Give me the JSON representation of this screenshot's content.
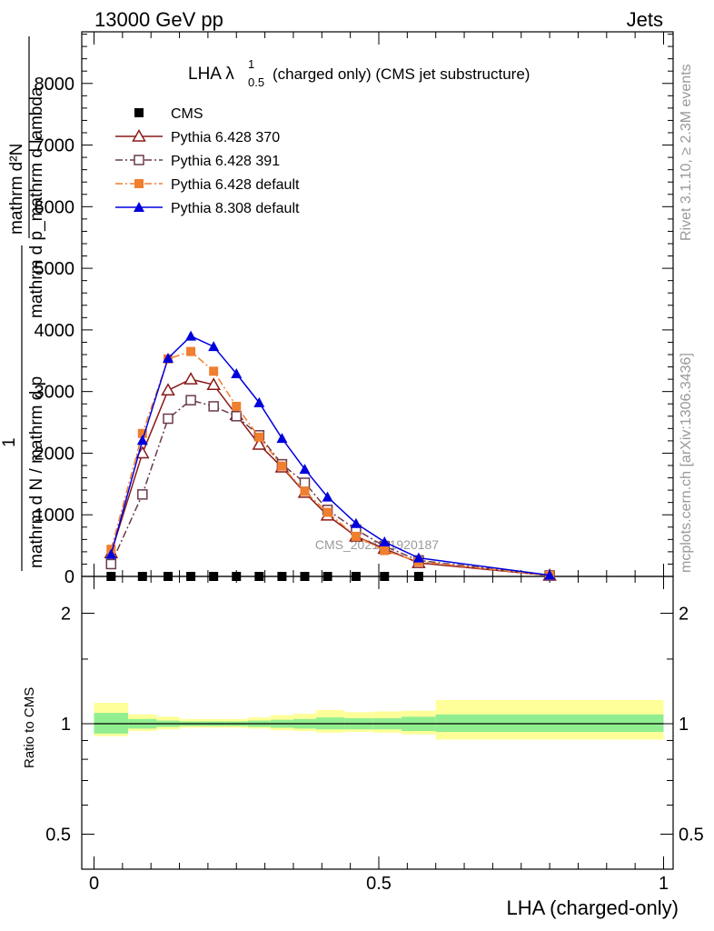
{
  "header": {
    "left": "13000 GeV pp",
    "right": "Jets"
  },
  "plot_title": {
    "prefix": "LHA λ",
    "sup": "1",
    "sub": "0.5",
    "suffix": "(charged only) (CMS jet substructure)"
  },
  "side_text": {
    "rivet": "Rivet 3.1.10, ≥ 2.3M events",
    "mcplots": "mcplots.cern.ch [arXiv:1306.3436]"
  },
  "watermark": "CMS_2021_I1920187",
  "axes": {
    "xlabel": "LHA (charged-only)",
    "ylabel_top_num": "1",
    "ylabel_top_a": "mathrm d N",
    "ylabel_top_b": "mathrm d p",
    "ylabel_main_num": "mathrm d²N",
    "ylabel_main_den": "mathrm d N / mathrm d p",
    "ylabel_main_den2": "mathrm d p_mathrm d lambda",
    "ratio_ylabel": "Ratio to CMS",
    "x_ticks": [
      "0",
      "0.5",
      "1"
    ],
    "y_ticks": [
      "0",
      "1000",
      "2000",
      "3000",
      "4000",
      "5000",
      "6000",
      "7000",
      "8000"
    ],
    "ratio_ticks": [
      "0.5",
      "1",
      "2"
    ]
  },
  "legend": [
    {
      "label": "CMS",
      "color": "#000000",
      "marker": "square-filled"
    },
    {
      "label": "Pythia 6.428 370",
      "color": "#8b1a1a",
      "marker": "triangle-open",
      "dash": "solid"
    },
    {
      "label": "Pythia 6.428 391",
      "color": "#6b3a4a",
      "marker": "square-open",
      "dash": "dashdot"
    },
    {
      "label": "Pythia 6.428 default",
      "color": "#f07f2f",
      "marker": "square-filled",
      "dash": "dashdot"
    },
    {
      "label": "Pythia 8.308 default",
      "color": "#0000dd",
      "marker": "triangle-filled",
      "dash": "solid"
    }
  ],
  "chart_data": {
    "type": "line",
    "x": [
      0.03,
      0.085,
      0.13,
      0.17,
      0.21,
      0.25,
      0.29,
      0.33,
      0.37,
      0.41,
      0.46,
      0.51,
      0.57,
      0.8
    ],
    "xlim": [
      -0.02,
      1.0
    ],
    "ylim": [
      0,
      8800
    ],
    "series": [
      {
        "name": "CMS",
        "values": [
          0,
          0,
          0,
          0,
          0,
          0,
          0,
          0,
          0,
          0,
          0,
          0,
          0,
          null
        ]
      },
      {
        "name": "Pythia 6.428 370",
        "values": [
          380,
          2000,
          3020,
          3200,
          3110,
          2620,
          2140,
          1770,
          1360,
          990,
          650,
          450,
          220,
          15
        ]
      },
      {
        "name": "Pythia 6.428 391",
        "values": [
          200,
          1330,
          2560,
          2860,
          2760,
          2600,
          2290,
          1820,
          1520,
          1080,
          760,
          490,
          260,
          15
        ]
      },
      {
        "name": "Pythia 6.428 default",
        "values": [
          440,
          2320,
          3530,
          3650,
          3330,
          2760,
          2260,
          1790,
          1380,
          1040,
          650,
          420,
          240,
          15
        ]
      },
      {
        "name": "Pythia 8.308 default",
        "values": [
          360,
          2210,
          3540,
          3900,
          3730,
          3290,
          2820,
          2240,
          1740,
          1290,
          860,
          560,
          300,
          20
        ]
      }
    ],
    "ratio": {
      "ylim": [
        0.4,
        2.3
      ],
      "log": true,
      "bin_edges": [
        -0.0,
        0.06,
        0.11,
        0.15,
        0.19,
        0.23,
        0.27,
        0.31,
        0.35,
        0.39,
        0.44,
        0.49,
        0.54,
        0.6,
        1.0
      ],
      "stat_band": [
        [
          0.94,
          1.07
        ],
        [
          0.97,
          1.03
        ],
        [
          0.98,
          1.02
        ],
        [
          0.985,
          1.015
        ],
        [
          0.985,
          1.015
        ],
        [
          0.985,
          1.015
        ],
        [
          0.98,
          1.02
        ],
        [
          0.975,
          1.025
        ],
        [
          0.97,
          1.03
        ],
        [
          0.965,
          1.04
        ],
        [
          0.965,
          1.035
        ],
        [
          0.965,
          1.035
        ],
        [
          0.955,
          1.045
        ],
        [
          0.95,
          1.06
        ]
      ],
      "total_band": [
        [
          0.925,
          1.14
        ],
        [
          0.955,
          1.06
        ],
        [
          0.965,
          1.045
        ],
        [
          0.975,
          1.03
        ],
        [
          0.975,
          1.03
        ],
        [
          0.975,
          1.03
        ],
        [
          0.97,
          1.04
        ],
        [
          0.96,
          1.055
        ],
        [
          0.955,
          1.065
        ],
        [
          0.945,
          1.09
        ],
        [
          0.95,
          1.075
        ],
        [
          0.945,
          1.08
        ],
        [
          0.935,
          1.085
        ],
        [
          0.905,
          1.16
        ]
      ]
    }
  },
  "colors": {
    "stat": "#90ee90",
    "total": "#ffff99"
  }
}
